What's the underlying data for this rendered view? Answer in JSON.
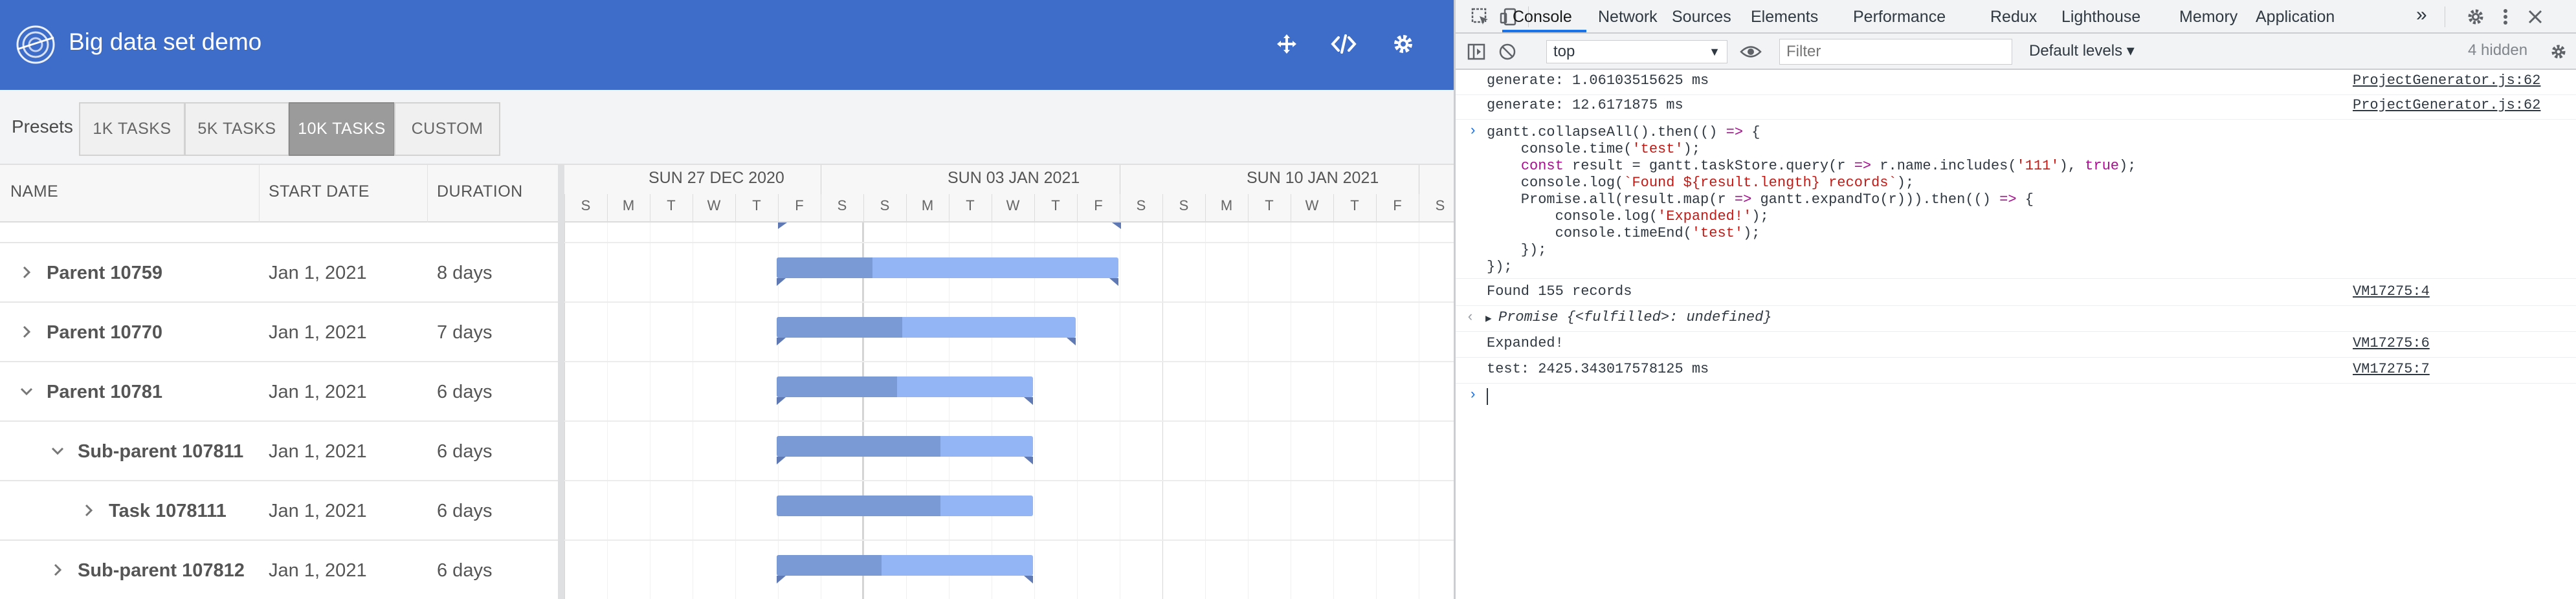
{
  "app": {
    "title": "Big data set demo",
    "header_icons": [
      "move-icon",
      "code-icon",
      "settings-gear-icon"
    ],
    "presets_label": "Presets",
    "presets": [
      {
        "label": "1K TASKS",
        "active": false
      },
      {
        "label": "5K TASKS",
        "active": false
      },
      {
        "label": "10K TASKS",
        "active": true
      },
      {
        "label": "CUSTOM",
        "active": false
      }
    ],
    "columns": {
      "name": "NAME",
      "start": "START DATE",
      "duration": "DURATION"
    },
    "weeks": [
      "SUN 27 DEC 2020",
      "SUN 03 JAN 2021",
      "SUN 10 JAN 2021"
    ],
    "days": [
      "S",
      "M",
      "T",
      "W",
      "T",
      "F",
      "S",
      "S",
      "M",
      "T",
      "W",
      "T",
      "F",
      "S",
      "S",
      "M",
      "T",
      "W",
      "T",
      "F",
      "S"
    ],
    "rows": [
      {
        "name": "Parent 10759",
        "start": "Jan 1, 2021",
        "duration": "8 days",
        "level": 0,
        "expanded": false,
        "progress": 0.28
      },
      {
        "name": "Parent 10770",
        "start": "Jan 1, 2021",
        "duration": "7 days",
        "level": 0,
        "expanded": false,
        "progress": 0.42
      },
      {
        "name": "Parent 10781",
        "start": "Jan 1, 2021",
        "duration": "6 days",
        "level": 0,
        "expanded": true,
        "progress": 0.47
      },
      {
        "name": "Sub-parent 107811",
        "start": "Jan 1, 2021",
        "duration": "6 days",
        "level": 1,
        "expanded": true,
        "progress": 0.64
      },
      {
        "name": "Task 1078111",
        "start": "Jan 1, 2021",
        "duration": "6 days",
        "level": 2,
        "expanded": false,
        "progress": 0.64
      },
      {
        "name": "Sub-parent 107812",
        "start": "Jan 1, 2021",
        "duration": "6 days",
        "level": 1,
        "expanded": false,
        "progress": 0.41
      }
    ]
  },
  "devtools": {
    "tabs": [
      "Console",
      "Network",
      "Sources",
      "Elements",
      "Performance",
      "Redux",
      "Lighthouse",
      "Memory",
      "Application"
    ],
    "active_tab": "Console",
    "more_tabs": "»",
    "context": "top",
    "filter_placeholder": "Filter",
    "levels": "Default levels ▾",
    "hidden": "4 hidden",
    "log": [
      {
        "text": "generate: 1.06103515625 ms",
        "source": "ProjectGenerator.js:62"
      },
      {
        "text": "generate: 12.6171875 ms",
        "source": "ProjectGenerator.js:62"
      }
    ],
    "code_lines": [
      "gantt.collapseAll().then(() => {",
      "    console.time('test');",
      "    const result = gantt.taskStore.query(r => r.name.includes('111'), true);",
      "    console.log(`Found ${result.length} records`);",
      "    Promise.all(result.map(r => gantt.expandTo(r))).then(() => {",
      "        console.log('Expanded!');",
      "        console.timeEnd('test');",
      "    });",
      "});"
    ],
    "results": [
      {
        "text": "Found 155 records",
        "source": "VM17275:4"
      },
      {
        "text": "Promise {<fulfilled>: undefined}",
        "source": ""
      },
      {
        "text": "Expanded!",
        "source": "VM17275:6"
      },
      {
        "text": "test: 2425.343017578125 ms",
        "source": "VM17275:7"
      }
    ]
  }
}
